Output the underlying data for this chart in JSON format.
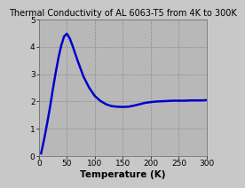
{
  "title": "Thermal Conductivity of AL 6063-T5 from 4K to 300K",
  "xlabel": "Temperature (K)",
  "xlim": [
    0,
    300
  ],
  "ylim": [
    0,
    5
  ],
  "yticks": [
    0,
    1,
    2,
    3,
    4,
    5
  ],
  "xticks": [
    0,
    50,
    100,
    150,
    200,
    250,
    300
  ],
  "line_color": "#0000cc",
  "bg_color": "#b8b8b8",
  "fig_bg_color": "#c8c8c8",
  "grid_color": "#808080",
  "title_fontsize": 7.0,
  "label_fontsize": 7.5,
  "tick_fontsize": 6.5,
  "line_width": 1.8,
  "x_data": [
    4,
    5,
    7,
    10,
    15,
    20,
    25,
    30,
    35,
    40,
    45,
    50,
    55,
    60,
    70,
    80,
    90,
    100,
    110,
    120,
    130,
    140,
    150,
    160,
    170,
    180,
    190,
    200,
    210,
    220,
    230,
    240,
    250,
    260,
    270,
    280,
    290,
    300
  ],
  "y_data": [
    0.1,
    0.2,
    0.38,
    0.68,
    1.22,
    1.8,
    2.45,
    3.05,
    3.6,
    4.05,
    4.38,
    4.48,
    4.32,
    4.05,
    3.45,
    2.9,
    2.5,
    2.2,
    2.02,
    1.9,
    1.83,
    1.81,
    1.8,
    1.81,
    1.85,
    1.9,
    1.95,
    1.98,
    2.0,
    2.01,
    2.02,
    2.03,
    2.03,
    2.03,
    2.04,
    2.04,
    2.04,
    2.05
  ]
}
